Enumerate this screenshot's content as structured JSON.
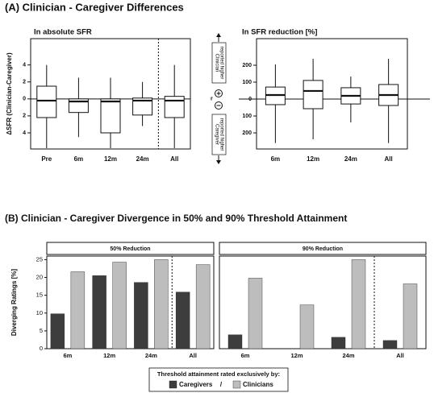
{
  "panel_a_title": "(A) Clinician - Caregiver Differences",
  "panel_b_title": "(B) Clinician - Caregiver Divergence in 50% and 90% Threshold Attainment",
  "annotations": {
    "upper": [
      "Clinician",
      "reported higher"
    ],
    "lower": [
      "Caregiver",
      "reported higher"
    ],
    "center": "if"
  },
  "legend_title": "Threshold attainment rated exclusively by:",
  "legend_separator": "/",
  "chart_data": [
    {
      "type": "box",
      "title": "In absolute SFR",
      "y_label": "ΔSFR (Clinician-Caregiver)",
      "categories": [
        "Pre",
        "6m",
        "12m",
        "24m",
        "All"
      ],
      "whisker_low": [
        -5.8,
        -4.5,
        -5.8,
        -3.2,
        -5.8
      ],
      "q1": [
        -2.2,
        -1.6,
        -4,
        -1.9,
        -2.2
      ],
      "median": [
        -0.2,
        -0.3,
        -0.3,
        -0.2,
        -0.2
      ],
      "q3": [
        1.5,
        0,
        0,
        0.1,
        0.3
      ],
      "whisker_high": [
        4,
        2.5,
        2.5,
        2,
        4
      ],
      "ylim": [
        -5.9,
        7.1
      ],
      "yticks": [
        {
          "value": 4,
          "label": "4"
        },
        {
          "value": 2,
          "label": "2"
        },
        0,
        {
          "value": -2,
          "label": "2"
        },
        {
          "value": -4,
          "label": "4"
        }
      ],
      "zero_line": true,
      "separator_before_last": true
    },
    {
      "type": "box",
      "title": "In SFR reduction [%]",
      "categories": [
        "6m",
        "12m",
        "24m",
        "All"
      ],
      "whisker_low": [
        -260,
        -238,
        -138,
        -260
      ],
      "q1": [
        -33,
        -57,
        -29,
        -38
      ],
      "median": [
        24,
        48,
        19,
        24
      ],
      "q3": [
        71,
        110,
        67,
        86
      ],
      "whisker_high": [
        205,
        238,
        133,
        238
      ],
      "ylim": [
        -295,
        357
      ],
      "yticks": [
        {
          "value": 200,
          "label": "200"
        },
        {
          "value": 100,
          "label": "100"
        },
        0,
        {
          "value": -100,
          "label": "100"
        },
        {
          "value": -200,
          "label": "200"
        }
      ],
      "zero_line": true,
      "separator_before_last": false
    },
    {
      "type": "bar",
      "title": "50% Reduction",
      "y_label": "Diverging Ratings [%]",
      "categories": [
        "6m",
        "12m",
        "24m",
        "All"
      ],
      "series": [
        {
          "name": "Caregivers",
          "color": "#3d3d3d",
          "values": [
            9.8,
            20.5,
            18.6,
            15.9
          ]
        },
        {
          "name": "Clinicians",
          "color": "#bdbdbd",
          "values": [
            21.6,
            24.3,
            25,
            23.6
          ]
        }
      ],
      "ylim": [
        0,
        26
      ],
      "yticks": [
        0,
        5,
        10,
        15,
        20,
        25
      ],
      "separator_before_last": true
    },
    {
      "type": "bar",
      "title": "90% Reduction",
      "categories": [
        "6m",
        "12m",
        "24m",
        "All"
      ],
      "series": [
        {
          "color": "#3d3d3d",
          "values": [
            3.9,
            0,
            3.2,
            2.3
          ]
        },
        {
          "color": "#bdbdbd",
          "values": [
            19.8,
            12.3,
            25,
            18.2
          ]
        }
      ],
      "ylim": [
        0,
        26
      ],
      "separator_before_last": true
    }
  ]
}
